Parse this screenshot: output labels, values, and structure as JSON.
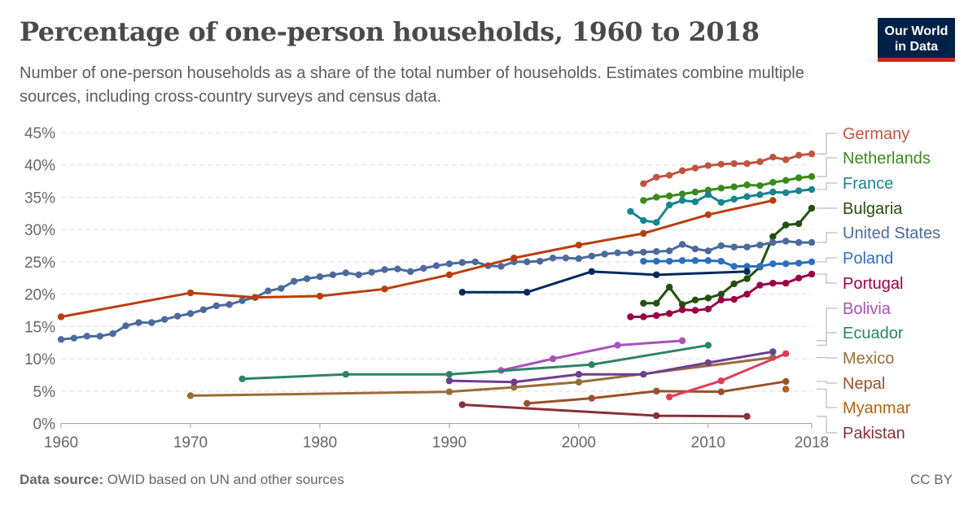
{
  "header": {
    "title": "Percentage of one-person households, 1960 to 2018",
    "subtitle": "Number of one-person households as a share of the total number of households. Estimates combine multiple sources, including cross-country surveys and census data.",
    "logo": "Our World in Data"
  },
  "footer": {
    "source_label": "Data source:",
    "source_text": "OWID based on UN and other sources",
    "license": "CC BY"
  },
  "chart_data": {
    "type": "line",
    "title": "Percentage of one-person households, 1960 to 2018",
    "xlim": [
      1960,
      2018
    ],
    "ylim": [
      0,
      45
    ],
    "grid": "horizontal dashed",
    "legend": "right, inline labels",
    "x_ticks": [
      "1960",
      "1970",
      "1980",
      "1990",
      "2000",
      "2010",
      "2018"
    ],
    "y_ticks": [
      "0%",
      "5%",
      "10%",
      "15%",
      "20%",
      "25%",
      "30%",
      "35%",
      "40%",
      "45%"
    ],
    "series": [
      {
        "name": "Germany",
        "color": "#c05440",
        "points": [
          [
            2005,
            37.1
          ],
          [
            2006,
            38.1
          ],
          [
            2007,
            38.4
          ],
          [
            2008,
            39.1
          ],
          [
            2009,
            39.5
          ],
          [
            2010,
            39.9
          ],
          [
            2011,
            40.1
          ],
          [
            2012,
            40.2
          ],
          [
            2013,
            40.2
          ],
          [
            2014,
            40.5
          ],
          [
            2015,
            41.2
          ],
          [
            2016,
            40.8
          ],
          [
            2017,
            41.5
          ],
          [
            2018,
            41.7
          ]
        ]
      },
      {
        "name": "Netherlands",
        "color": "#3a8a1a",
        "points": [
          [
            2005,
            34.5
          ],
          [
            2006,
            35.0
          ],
          [
            2007,
            35.2
          ],
          [
            2008,
            35.5
          ],
          [
            2009,
            35.8
          ],
          [
            2010,
            36.1
          ],
          [
            2011,
            36.4
          ],
          [
            2012,
            36.6
          ],
          [
            2013,
            36.9
          ],
          [
            2014,
            36.8
          ],
          [
            2015,
            37.3
          ],
          [
            2016,
            37.6
          ],
          [
            2017,
            38.0
          ],
          [
            2018,
            38.2
          ]
        ]
      },
      {
        "name": "France",
        "color": "#17858f",
        "points": [
          [
            2004,
            32.8
          ],
          [
            2005,
            31.4
          ],
          [
            2006,
            31.1
          ],
          [
            2007,
            33.8
          ],
          [
            2008,
            34.5
          ],
          [
            2009,
            34.3
          ],
          [
            2010,
            35.4
          ],
          [
            2011,
            34.2
          ],
          [
            2012,
            34.7
          ],
          [
            2013,
            35.1
          ],
          [
            2014,
            35.4
          ],
          [
            2015,
            35.8
          ],
          [
            2016,
            35.7
          ],
          [
            2017,
            36.0
          ],
          [
            2018,
            36.2
          ]
        ]
      },
      {
        "name": "Bulgaria",
        "color": "#21500f",
        "points": [
          [
            2005,
            18.6
          ],
          [
            2006,
            18.6
          ],
          [
            2007,
            21.1
          ],
          [
            2008,
            18.4
          ],
          [
            2009,
            19.1
          ],
          [
            2010,
            19.4
          ],
          [
            2011,
            20.0
          ],
          [
            2012,
            21.6
          ],
          [
            2013,
            22.4
          ],
          [
            2014,
            24.2
          ],
          [
            2015,
            28.9
          ],
          [
            2016,
            30.7
          ],
          [
            2017,
            30.9
          ],
          [
            2018,
            33.3
          ]
        ]
      },
      {
        "name": "United States",
        "color": "#4c6a9c",
        "points": [
          [
            1960,
            13.0
          ],
          [
            1961,
            13.2
          ],
          [
            1962,
            13.5
          ],
          [
            1963,
            13.5
          ],
          [
            1964,
            13.9
          ],
          [
            1965,
            15.1
          ],
          [
            1966,
            15.6
          ],
          [
            1967,
            15.6
          ],
          [
            1968,
            16.1
          ],
          [
            1969,
            16.6
          ],
          [
            1970,
            17.0
          ],
          [
            1971,
            17.6
          ],
          [
            1972,
            18.2
          ],
          [
            1973,
            18.4
          ],
          [
            1974,
            19.0
          ],
          [
            1975,
            19.5
          ],
          [
            1976,
            20.5
          ],
          [
            1977,
            20.9
          ],
          [
            1978,
            22.0
          ],
          [
            1979,
            22.4
          ],
          [
            1980,
            22.7
          ],
          [
            1981,
            23.0
          ],
          [
            1982,
            23.3
          ],
          [
            1983,
            23.0
          ],
          [
            1984,
            23.4
          ],
          [
            1985,
            23.8
          ],
          [
            1986,
            23.9
          ],
          [
            1987,
            23.5
          ],
          [
            1988,
            24.0
          ],
          [
            1989,
            24.4
          ],
          [
            1990,
            24.7
          ],
          [
            1991,
            24.9
          ],
          [
            1992,
            25.0
          ],
          [
            1993,
            24.4
          ],
          [
            1994,
            24.3
          ],
          [
            1995,
            25.0
          ],
          [
            1996,
            25.0
          ],
          [
            1997,
            25.1
          ],
          [
            1998,
            25.6
          ],
          [
            1999,
            25.6
          ],
          [
            2000,
            25.5
          ],
          [
            2001,
            25.9
          ],
          [
            2002,
            26.2
          ],
          [
            2003,
            26.4
          ],
          [
            2004,
            26.4
          ],
          [
            2005,
            26.5
          ],
          [
            2006,
            26.6
          ],
          [
            2007,
            26.7
          ],
          [
            2008,
            27.7
          ],
          [
            2009,
            27.0
          ],
          [
            2010,
            26.7
          ],
          [
            2011,
            27.5
          ],
          [
            2012,
            27.3
          ],
          [
            2013,
            27.3
          ],
          [
            2014,
            27.6
          ],
          [
            2015,
            28.0
          ],
          [
            2016,
            28.2
          ],
          [
            2017,
            28.0
          ],
          [
            2018,
            28.0
          ]
        ]
      },
      {
        "name": "Poland",
        "color": "#2c6fbf",
        "points": [
          [
            2005,
            25.1
          ],
          [
            2006,
            25.1
          ],
          [
            2007,
            25.1
          ],
          [
            2008,
            25.2
          ],
          [
            2009,
            25.2
          ],
          [
            2010,
            25.2
          ],
          [
            2011,
            25.1
          ],
          [
            2012,
            24.3
          ],
          [
            2013,
            24.3
          ],
          [
            2014,
            24.3
          ],
          [
            2015,
            24.7
          ],
          [
            2016,
            24.7
          ],
          [
            2017,
            24.8
          ],
          [
            2018,
            25.0
          ]
        ]
      },
      {
        "name": "Portugal",
        "color": "#970046",
        "points": [
          [
            2004,
            16.5
          ],
          [
            2005,
            16.5
          ],
          [
            2006,
            16.7
          ],
          [
            2007,
            17.0
          ],
          [
            2008,
            17.6
          ],
          [
            2009,
            17.5
          ],
          [
            2010,
            17.7
          ],
          [
            2011,
            19.1
          ],
          [
            2012,
            19.2
          ],
          [
            2013,
            20.0
          ],
          [
            2014,
            21.4
          ],
          [
            2015,
            21.7
          ],
          [
            2016,
            21.7
          ],
          [
            2017,
            22.5
          ],
          [
            2018,
            23.1
          ]
        ]
      },
      {
        "name": "Bolivia",
        "color": "#a652ba",
        "points": [
          [
            1994,
            8.2
          ],
          [
            1998,
            10.0
          ],
          [
            2003,
            12.1
          ],
          [
            2008,
            12.8
          ]
        ]
      },
      {
        "name": "Ecuador",
        "color": "#2c8465",
        "points": [
          [
            1974,
            6.9
          ],
          [
            1982,
            7.6
          ],
          [
            1990,
            7.6
          ],
          [
            2001,
            9.1
          ],
          [
            2010,
            12.1
          ]
        ]
      },
      {
        "name": "Mexico",
        "color": "#996d39",
        "points": [
          [
            1970,
            4.3
          ],
          [
            1990,
            4.9
          ],
          [
            1995,
            5.6
          ],
          [
            2000,
            6.4
          ],
          [
            2015,
            10.2
          ]
        ]
      },
      {
        "name": "Nepal",
        "color": "#9a5129",
        "points": [
          [
            1996,
            3.1
          ],
          [
            2001,
            3.9
          ],
          [
            2006,
            5.0
          ],
          [
            2011,
            4.9
          ],
          [
            2016,
            6.5
          ]
        ]
      },
      {
        "name": "Myanmar",
        "color": "#b16214",
        "points": [
          [
            2016,
            5.3
          ]
        ]
      },
      {
        "name": "Pakistan",
        "color": "#883039",
        "points": [
          [
            1991,
            2.9
          ],
          [
            2006,
            1.2
          ],
          [
            2013,
            1.1
          ]
        ]
      },
      {
        "color": "#b93e0c",
        "points": [
          [
            1960,
            16.5
          ],
          [
            1970,
            20.2
          ],
          [
            1975,
            19.5
          ],
          [
            1980,
            19.7
          ],
          [
            1985,
            20.8
          ],
          [
            1990,
            23.0
          ],
          [
            1995,
            25.6
          ],
          [
            2000,
            27.6
          ],
          [
            2005,
            29.4
          ],
          [
            2010,
            32.3
          ],
          [
            2015,
            34.5
          ]
        ]
      },
      {
        "color": "#00295b",
        "points": [
          [
            1991,
            20.3
          ],
          [
            1996,
            20.3
          ],
          [
            2001,
            23.5
          ],
          [
            2006,
            23.0
          ],
          [
            2013,
            23.5
          ]
        ]
      },
      {
        "color": "#6d3e91",
        "points": [
          [
            1990,
            6.6
          ],
          [
            1995,
            6.4
          ],
          [
            2000,
            7.6
          ],
          [
            2005,
            7.6
          ],
          [
            2010,
            9.4
          ],
          [
            2015,
            11.1
          ]
        ]
      },
      {
        "color": "#e03c5a",
        "points": [
          [
            2007,
            4.1
          ],
          [
            2011,
            6.6
          ],
          [
            2016,
            10.8
          ]
        ]
      }
    ]
  }
}
